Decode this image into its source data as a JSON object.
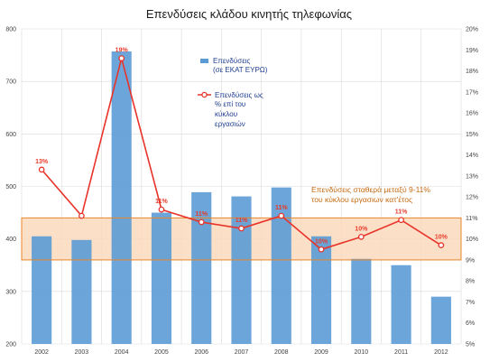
{
  "chart_data": {
    "type": "bar",
    "title": "Επενδύσεις κλάδου κινητής τηλεφωνίας",
    "categories": [
      "2002",
      "2003",
      "2004",
      "2005",
      "2006",
      "2007",
      "2008",
      "2009",
      "2010",
      "2011",
      "2012"
    ],
    "series": [
      {
        "name": "Επενδύσεις (σε ΕΚΑΤ ΕΥΡΩ)",
        "type": "bar",
        "axis": "left",
        "color": "#5b9bd5",
        "values": [
          405,
          398,
          757,
          450,
          489,
          481,
          498,
          405,
          362,
          350,
          290
        ]
      },
      {
        "name": "Επενδύσεις ως % επί του κύκλου εργασιών",
        "type": "line",
        "axis": "right",
        "color": "#e8332a",
        "values": [
          13.3,
          11.1,
          18.6,
          11.4,
          10.8,
          10.5,
          11.1,
          9.5,
          10.1,
          10.9,
          9.7
        ],
        "labels": [
          "13%",
          "",
          "19%",
          "11%",
          "11%",
          "11%",
          "11%",
          "10%",
          "10%",
          "11%",
          "10%"
        ]
      }
    ],
    "ylim_left": [
      200,
      800
    ],
    "yticks_left": [
      "200",
      "300",
      "400",
      "500",
      "600",
      "700",
      "800"
    ],
    "ylim_right": [
      5,
      20
    ],
    "yticks_right": [
      "5%",
      "6%",
      "7%",
      "8%",
      "9%",
      "10%",
      "11%",
      "12%",
      "13%",
      "14%",
      "15%",
      "16%",
      "17%",
      "18%",
      "19%",
      "20%"
    ],
    "band": {
      "from": 9,
      "to": 11,
      "text_line1": "Επενδύσεις σταθερά μεταξύ 9-11%",
      "text_line2": "του κύκλου εργασιων κατ'έτος"
    },
    "legend": {
      "bar_line1": "Επενδύσεις",
      "bar_line2": "(σε ΕΚΑΤ ΕΥΡΩ)",
      "line_line1": "Επενδύσεις ως",
      "line_line2": "% επί του",
      "line_line3": "κύκλου",
      "line_line4": "εργασιών"
    },
    "grid": true
  }
}
